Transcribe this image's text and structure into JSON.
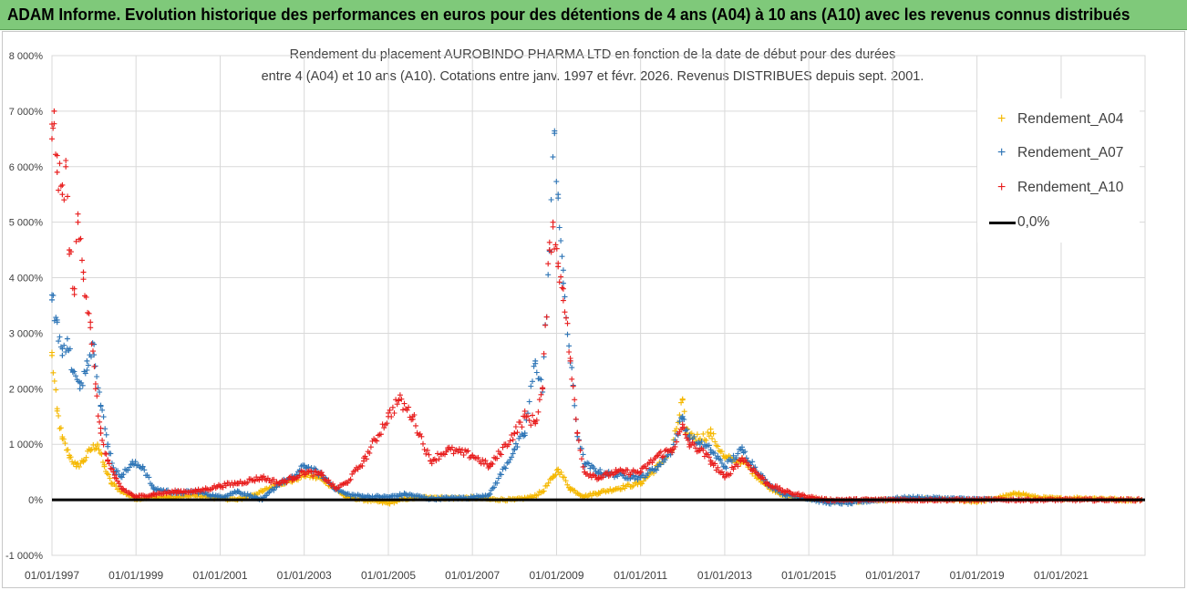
{
  "header": {
    "title": "ADAM Informe. Evolution historique des performances en euros pour des détentions de 4 ans (A04) à 10 ans (A10) avec les revenus connus distribués"
  },
  "chart_data": {
    "type": "scatter",
    "title_line1": "Rendement du placement AUROBINDO PHARMA LTD en fonction de la date de début pour des durées",
    "title_line2": "entre 4 (A04) et 10 ans (A10).  Cotations entre janv. 1997 et févr. 2026. Revenus DISTRIBUES depuis sept. 2001.",
    "xlabel": "",
    "ylabel": "",
    "x_range": [
      "1997-01-01",
      "2022-12-31"
    ],
    "y_range": [
      -1000,
      8000
    ],
    "y_unit": "%",
    "grid": true,
    "legend_position": "right",
    "x_ticks": [
      "01/01/1997",
      "01/01/1999",
      "01/01/2001",
      "01/01/2003",
      "01/01/2005",
      "01/01/2007",
      "01/01/2009",
      "01/01/2011",
      "01/01/2013",
      "01/01/2015",
      "01/01/2017",
      "01/01/2019",
      "01/01/2021"
    ],
    "y_ticks": [
      "-1 000%",
      "0%",
      "1 000%",
      "2 000%",
      "3 000%",
      "4 000%",
      "5 000%",
      "6 000%",
      "7 000%",
      "8 000%"
    ],
    "y_tick_values": [
      -1000,
      0,
      1000,
      2000,
      3000,
      4000,
      5000,
      6000,
      7000,
      8000
    ],
    "series": [
      {
        "name": "Rendement_A04",
        "color": "#f5b800",
        "marker": "plus",
        "points": [
          [
            "1997-01-01",
            2600
          ],
          [
            "1997-02-15",
            1600
          ],
          [
            "1997-04-01",
            1100
          ],
          [
            "1997-06-01",
            800
          ],
          [
            "1997-08-01",
            600
          ],
          [
            "1997-10-01",
            700
          ],
          [
            "1997-12-01",
            900
          ],
          [
            "1998-02-01",
            1000
          ],
          [
            "1998-04-01",
            600
          ],
          [
            "1998-06-01",
            300
          ],
          [
            "1998-09-01",
            150
          ],
          [
            "1999-01-01",
            20
          ],
          [
            "1999-06-01",
            50
          ],
          [
            "2000-01-01",
            50
          ],
          [
            "2000-06-01",
            80
          ],
          [
            "2001-01-01",
            30
          ],
          [
            "2001-06-01",
            0
          ],
          [
            "2002-01-01",
            150
          ],
          [
            "2002-06-01",
            300
          ],
          [
            "2002-10-01",
            350
          ],
          [
            "2003-01-01",
            450
          ],
          [
            "2003-06-01",
            380
          ],
          [
            "2003-10-01",
            200
          ],
          [
            "2004-01-01",
            50
          ],
          [
            "2004-06-01",
            0
          ],
          [
            "2005-01-01",
            -60
          ],
          [
            "2005-06-01",
            20
          ],
          [
            "2006-01-01",
            50
          ],
          [
            "2006-06-01",
            30
          ],
          [
            "2007-01-01",
            40
          ],
          [
            "2007-06-01",
            10
          ],
          [
            "2008-01-01",
            0
          ],
          [
            "2008-06-01",
            50
          ],
          [
            "2008-09-01",
            150
          ],
          [
            "2008-12-01",
            400
          ],
          [
            "2009-01-15",
            550
          ],
          [
            "2009-05-01",
            200
          ],
          [
            "2009-09-01",
            60
          ],
          [
            "2010-01-01",
            130
          ],
          [
            "2010-06-01",
            200
          ],
          [
            "2011-01-01",
            300
          ],
          [
            "2011-06-01",
            600
          ],
          [
            "2011-10-01",
            900
          ],
          [
            "2012-01-01",
            1800
          ],
          [
            "2012-02-01",
            1200
          ],
          [
            "2012-06-01",
            1100
          ],
          [
            "2012-09-01",
            1200
          ],
          [
            "2013-01-01",
            750
          ],
          [
            "2013-06-01",
            700
          ],
          [
            "2014-01-01",
            250
          ],
          [
            "2014-06-01",
            80
          ],
          [
            "2015-01-01",
            30
          ],
          [
            "2015-06-01",
            -20
          ],
          [
            "2016-01-01",
            -40
          ],
          [
            "2016-06-01",
            -10
          ],
          [
            "2017-01-01",
            0
          ],
          [
            "2017-06-01",
            10
          ],
          [
            "2018-01-01",
            10
          ],
          [
            "2018-06-01",
            0
          ],
          [
            "2019-01-01",
            -30
          ],
          [
            "2019-06-01",
            20
          ],
          [
            "2020-01-01",
            120
          ],
          [
            "2020-06-01",
            40
          ],
          [
            "2021-01-01",
            20
          ],
          [
            "2021-06-01",
            30
          ],
          [
            "2022-01-01",
            20
          ],
          [
            "2022-06-01",
            0
          ],
          [
            "2022-12-01",
            0
          ]
        ]
      },
      {
        "name": "Rendement_A07",
        "color": "#2e75b6",
        "marker": "plus",
        "points": [
          [
            "1997-01-01",
            3600
          ],
          [
            "1997-02-15",
            3200
          ],
          [
            "1997-04-01",
            2600
          ],
          [
            "1997-05-15",
            2900
          ],
          [
            "1997-07-01",
            2300
          ],
          [
            "1997-09-01",
            2000
          ],
          [
            "1997-11-01",
            2500
          ],
          [
            "1998-01-01",
            2800
          ],
          [
            "1998-03-01",
            1700
          ],
          [
            "1998-05-01",
            1000
          ],
          [
            "1998-07-01",
            500
          ],
          [
            "1998-09-01",
            450
          ],
          [
            "1998-12-01",
            650
          ],
          [
            "1999-03-01",
            600
          ],
          [
            "1999-06-01",
            200
          ],
          [
            "2000-01-01",
            120
          ],
          [
            "2000-06-01",
            150
          ],
          [
            "2001-01-01",
            50
          ],
          [
            "2001-06-01",
            150
          ],
          [
            "2002-01-01",
            0
          ],
          [
            "2002-06-01",
            300
          ],
          [
            "2002-10-01",
            400
          ],
          [
            "2003-01-01",
            620
          ],
          [
            "2003-06-01",
            450
          ],
          [
            "2003-10-01",
            200
          ],
          [
            "2004-01-01",
            100
          ],
          [
            "2004-06-01",
            60
          ],
          [
            "2005-01-01",
            50
          ],
          [
            "2005-06-01",
            100
          ],
          [
            "2006-01-01",
            20
          ],
          [
            "2006-06-01",
            30
          ],
          [
            "2007-01-01",
            40
          ],
          [
            "2007-06-01",
            100
          ],
          [
            "2008-01-01",
            900
          ],
          [
            "2008-04-01",
            1200
          ],
          [
            "2008-07-01",
            2500
          ],
          [
            "2008-09-01",
            2000
          ],
          [
            "2008-11-01",
            4500
          ],
          [
            "2008-12-15",
            6600
          ],
          [
            "2009-01-15",
            5500
          ],
          [
            "2009-03-01",
            3900
          ],
          [
            "2009-05-01",
            2500
          ],
          [
            "2009-07-01",
            1200
          ],
          [
            "2009-09-01",
            650
          ],
          [
            "2010-01-01",
            500
          ],
          [
            "2010-06-01",
            450
          ],
          [
            "2011-01-01",
            400
          ],
          [
            "2011-06-01",
            600
          ],
          [
            "2011-10-01",
            900
          ],
          [
            "2012-01-01",
            1500
          ],
          [
            "2012-03-01",
            1100
          ],
          [
            "2012-06-01",
            1000
          ],
          [
            "2012-09-01",
            900
          ],
          [
            "2013-01-01",
            600
          ],
          [
            "2013-06-01",
            900
          ],
          [
            "2014-01-01",
            300
          ],
          [
            "2014-06-01",
            100
          ],
          [
            "2015-01-01",
            20
          ],
          [
            "2015-06-01",
            -50
          ],
          [
            "2016-01-01",
            -60
          ],
          [
            "2016-06-01",
            -20
          ],
          [
            "2017-01-01",
            20
          ],
          [
            "2017-06-01",
            40
          ],
          [
            "2018-01-01",
            30
          ],
          [
            "2018-06-01",
            20
          ],
          [
            "2019-01-01",
            10
          ],
          [
            "2019-06-01",
            0
          ]
        ]
      },
      {
        "name": "Rendement_A10",
        "color": "#e81e1e",
        "marker": "plus",
        "points": [
          [
            "1997-01-01",
            6500
          ],
          [
            "1997-01-20",
            7000
          ],
          [
            "1997-02-15",
            5900
          ],
          [
            "1997-04-01",
            5500
          ],
          [
            "1997-05-01",
            6000
          ],
          [
            "1997-06-01",
            4500
          ],
          [
            "1997-07-15",
            3800
          ],
          [
            "1997-08-15",
            5000
          ],
          [
            "1997-10-01",
            4100
          ],
          [
            "1997-12-01",
            3200
          ],
          [
            "1998-01-15",
            2000
          ],
          [
            "1998-03-01",
            1200
          ],
          [
            "1998-05-01",
            700
          ],
          [
            "1998-07-01",
            400
          ],
          [
            "1998-09-01",
            200
          ],
          [
            "1999-01-01",
            50
          ],
          [
            "1999-06-01",
            100
          ],
          [
            "2000-01-01",
            150
          ],
          [
            "2000-06-01",
            150
          ],
          [
            "2001-01-01",
            250
          ],
          [
            "2001-06-01",
            300
          ],
          [
            "2002-01-01",
            400
          ],
          [
            "2002-06-01",
            300
          ],
          [
            "2002-10-01",
            400
          ],
          [
            "2003-01-01",
            500
          ],
          [
            "2003-06-01",
            450
          ],
          [
            "2003-10-01",
            200
          ],
          [
            "2004-01-01",
            300
          ],
          [
            "2004-06-01",
            700
          ],
          [
            "2005-01-01",
            1500
          ],
          [
            "2005-04-01",
            1800
          ],
          [
            "2005-08-01",
            1500
          ],
          [
            "2006-01-01",
            700
          ],
          [
            "2006-06-01",
            900
          ],
          [
            "2007-01-01",
            800
          ],
          [
            "2007-06-01",
            600
          ],
          [
            "2008-01-01",
            1200
          ],
          [
            "2008-04-01",
            1500
          ],
          [
            "2008-07-01",
            1400
          ],
          [
            "2008-09-01",
            2000
          ],
          [
            "2008-11-01",
            4500
          ],
          [
            "2008-12-01",
            5000
          ],
          [
            "2009-01-15",
            4200
          ],
          [
            "2009-03-01",
            3800
          ],
          [
            "2009-05-01",
            2500
          ],
          [
            "2009-07-01",
            1200
          ],
          [
            "2009-09-01",
            500
          ],
          [
            "2010-01-01",
            400
          ],
          [
            "2010-06-01",
            500
          ],
          [
            "2011-01-01",
            500
          ],
          [
            "2011-06-01",
            800
          ],
          [
            "2011-10-01",
            900
          ],
          [
            "2012-01-01",
            1300
          ],
          [
            "2012-03-01",
            1000
          ],
          [
            "2012-06-01",
            900
          ],
          [
            "2012-09-01",
            700
          ],
          [
            "2013-01-01",
            400
          ],
          [
            "2013-06-01",
            750
          ],
          [
            "2014-01-01",
            300
          ],
          [
            "2014-06-01",
            150
          ],
          [
            "2015-01-01",
            50
          ],
          [
            "2015-06-01",
            0
          ],
          [
            "2016-01-01",
            0
          ],
          [
            "2016-06-01",
            0
          ],
          [
            "2017-01-01",
            0
          ],
          [
            "2018-01-01",
            0
          ],
          [
            "2019-01-01",
            0
          ],
          [
            "2020-01-01",
            0
          ],
          [
            "2021-01-01",
            0
          ],
          [
            "2022-01-01",
            0
          ],
          [
            "2022-12-01",
            0
          ]
        ]
      }
    ],
    "legend": [
      {
        "label": "Rendement_A04",
        "color": "#f5b800",
        "marker": "plus"
      },
      {
        "label": "Rendement_A07",
        "color": "#2e75b6",
        "marker": "plus"
      },
      {
        "label": "Rendement_A10",
        "color": "#e81e1e",
        "marker": "plus"
      },
      {
        "label": "0,0%",
        "color": "#000000",
        "marker": "line"
      }
    ]
  }
}
